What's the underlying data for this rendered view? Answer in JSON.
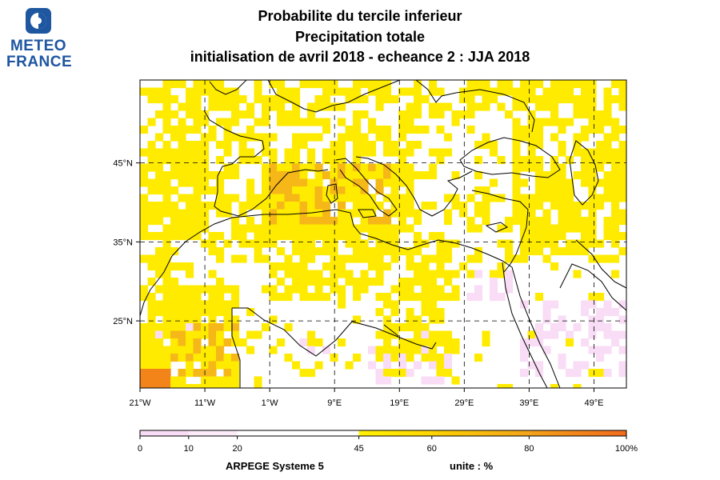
{
  "logo": {
    "line1": "METEO",
    "line2": "FRANCE"
  },
  "title": {
    "line1": "Probabilite du tercile inferieur",
    "line2": "Precipitation totale",
    "line3": "initialisation de avril 2018  -  echeance 2 : JJA 2018"
  },
  "map": {
    "lon_range": [
      -21,
      54
    ],
    "lat_range": [
      16.5,
      55.5
    ],
    "lon_ticks": [
      "21°W",
      "11°W",
      "1°W",
      "9°E",
      "19°E",
      "29°E",
      "39°E",
      "49°E"
    ],
    "lat_ticks": [
      "45°N",
      "35°N",
      "25°N"
    ],
    "grid": "dashed",
    "field": "probability of lower tercile of total precipitation (%)",
    "colors": {
      "lower": "#f9dcf5",
      "upper1": "#ffeb00",
      "upper2": "#f6b718",
      "upper3": "#f2841a"
    }
  },
  "colorbar": {
    "labels": [
      "0",
      "10",
      "20",
      "45",
      "60",
      "80",
      "100%"
    ],
    "colors": [
      "#f9dcf5",
      "#fcecfa",
      "#ffffff",
      "#fff200",
      "#f6b718",
      "#f27d1a"
    ]
  },
  "footer": {
    "model": "ARPEGE Systeme 5",
    "unit": "unite : %"
  }
}
